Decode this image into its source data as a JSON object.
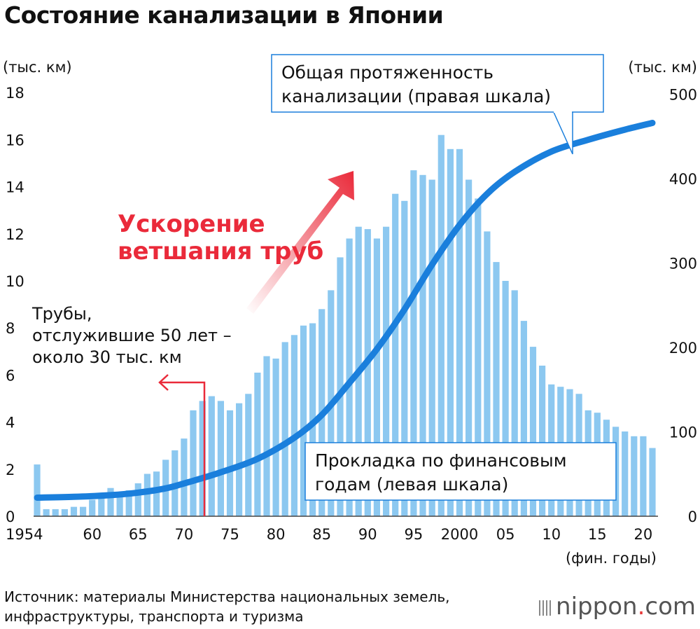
{
  "title": "Состояние канализации в Японии",
  "left_unit": "(тыс. км)",
  "right_unit": "(тыс. км)",
  "x_unit": "(фин. годы)",
  "source_line1": "Источник: материалы Министерства национальных земель,",
  "source_line2": "инфраструктуры, транспорта и туризма",
  "logo_main": "nippon",
  "logo_dot": ".",
  "logo_tail": "com",
  "accel_line1": "Ускорение",
  "accel_line2": "ветшания труб",
  "pipes_line1": "Трубы,",
  "pipes_line2": "отслужившие 50 лет –",
  "pipes_line3": "около 30 тыс. км",
  "total_line1": "Общая протяженность",
  "total_line2": "канализации (правая шкала)",
  "laying_line1": "Прокладка по финансовым",
  "laying_line2": "годам (левая шкала)",
  "colors": {
    "bar": "#8cc8f0",
    "line": "#1a7fdc",
    "accent": "#ea2a3a"
  },
  "chart_data": {
    "type": "bar+line",
    "x": [
      1954,
      1955,
      1956,
      1957,
      1958,
      1959,
      1960,
      1961,
      1962,
      1963,
      1964,
      1965,
      1966,
      1967,
      1968,
      1969,
      1970,
      1971,
      1972,
      1973,
      1974,
      1975,
      1976,
      1977,
      1978,
      1979,
      1980,
      1981,
      1982,
      1983,
      1984,
      1985,
      1986,
      1987,
      1988,
      1989,
      1990,
      1991,
      1992,
      1993,
      1994,
      1995,
      1996,
      1997,
      1998,
      1999,
      2000,
      2001,
      2002,
      2003,
      2004,
      2005,
      2006,
      2007,
      2008,
      2009,
      2010,
      2011,
      2012,
      2013,
      2014,
      2015,
      2016,
      2017,
      2018,
      2019,
      2020,
      2021
    ],
    "x_ticks": [
      {
        "year": 1954,
        "label": "1954"
      },
      {
        "year": 1960,
        "label": "60"
      },
      {
        "year": 1965,
        "label": "65"
      },
      {
        "year": 1970,
        "label": "70"
      },
      {
        "year": 1975,
        "label": "75"
      },
      {
        "year": 1980,
        "label": "80"
      },
      {
        "year": 1985,
        "label": "85"
      },
      {
        "year": 1990,
        "label": "90"
      },
      {
        "year": 1995,
        "label": "95"
      },
      {
        "year": 2000,
        "label": "2000"
      },
      {
        "year": 2005,
        "label": "05"
      },
      {
        "year": 2010,
        "label": "10"
      },
      {
        "year": 2015,
        "label": "15"
      },
      {
        "year": 2020,
        "label": "20"
      }
    ],
    "series": [
      {
        "name": "Прокладка по финансовым годам (левая шкала)",
        "type": "bar",
        "axis": "left",
        "values": [
          2.2,
          0.3,
          0.3,
          0.3,
          0.4,
          0.4,
          0.7,
          0.9,
          1.2,
          1.0,
          1.1,
          1.4,
          1.8,
          1.9,
          2.4,
          2.8,
          3.3,
          4.5,
          4.9,
          5.1,
          4.9,
          4.5,
          4.8,
          5.2,
          6.1,
          6.8,
          6.7,
          7.4,
          7.7,
          8.1,
          8.2,
          8.8,
          9.6,
          11.0,
          11.8,
          12.3,
          12.2,
          11.8,
          12.3,
          13.7,
          13.4,
          14.7,
          14.5,
          14.3,
          16.2,
          15.6,
          15.6,
          14.3,
          13.5,
          12.1,
          10.8,
          10.0,
          9.6,
          8.3,
          7.2,
          6.4,
          5.6,
          5.5,
          5.4,
          5.2,
          4.5,
          4.4,
          4.1,
          3.8,
          3.6,
          3.4,
          3.4,
          2.9
        ]
      },
      {
        "name": "Общая протяженность канализации (правая шкала)",
        "type": "line",
        "axis": "right",
        "x": [
          1954,
          1958,
          1962,
          1965,
          1968,
          1971,
          1974,
          1978,
          1982,
          1985,
          1988,
          1991,
          1994,
          1997,
          2000,
          2003,
          2006,
          2010,
          2014,
          2018,
          2021
        ],
        "values": [
          22,
          23,
          25,
          28,
          33,
          42,
          52,
          68,
          93,
          120,
          158,
          198,
          245,
          298,
          345,
          382,
          408,
          432,
          446,
          458,
          466
        ]
      }
    ],
    "y_left": {
      "ticks": [
        0,
        2,
        4,
        6,
        8,
        10,
        12,
        14,
        16,
        18
      ],
      "range": [
        0,
        18
      ]
    },
    "y_right": {
      "ticks": [
        0,
        100,
        200,
        300,
        400,
        500
      ],
      "range": [
        0,
        500
      ]
    },
    "annotation_marker_year": 1972.3
  }
}
